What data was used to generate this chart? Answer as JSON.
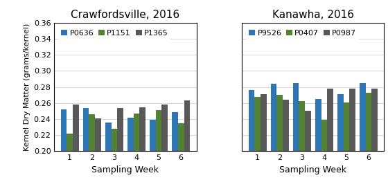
{
  "left_title": "Crawfordsville, 2016",
  "right_title": "Kanawha, 2016",
  "ylabel": "Kernel Dry Matter (grams/kernel)",
  "xlabel": "Sampling Week",
  "weeks": [
    1,
    2,
    3,
    4,
    5,
    6
  ],
  "ylim": [
    0.2,
    0.36
  ],
  "yticks": [
    0.2,
    0.22,
    0.24,
    0.26,
    0.28,
    0.3,
    0.32,
    0.34,
    0.36
  ],
  "left_legend": [
    "P0636",
    "P1151",
    "P1365"
  ],
  "right_legend": [
    "P9526",
    "P0407",
    "P0987"
  ],
  "left_data": {
    "P0636": [
      0.252,
      0.254,
      0.236,
      0.242,
      0.239,
      0.249
    ],
    "P1151": [
      0.222,
      0.246,
      0.228,
      0.247,
      0.251,
      0.235
    ],
    "P1365": [
      0.258,
      0.241,
      0.254,
      0.255,
      0.258,
      0.263
    ]
  },
  "right_data": {
    "P9526": [
      0.276,
      0.284,
      0.285,
      0.265,
      0.271,
      0.285
    ],
    "P0407": [
      0.268,
      0.27,
      0.262,
      0.239,
      0.261,
      0.273
    ],
    "P0987": [
      0.271,
      0.264,
      0.25,
      0.278,
      0.278,
      0.278
    ]
  },
  "colors": [
    "#2E75B6",
    "#548235",
    "#595959"
  ],
  "bar_width": 0.27,
  "title_fontsize": 11,
  "tick_fontsize": 8,
  "label_fontsize": 9,
  "legend_fontsize": 8
}
